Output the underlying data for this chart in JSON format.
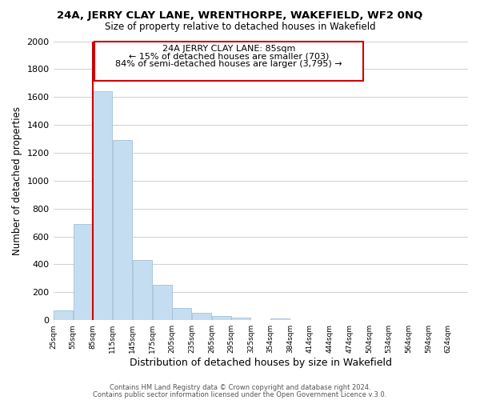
{
  "title": "24A, JERRY CLAY LANE, WRENTHORPE, WAKEFIELD, WF2 0NQ",
  "subtitle": "Size of property relative to detached houses in Wakefield",
  "xlabel": "Distribution of detached houses by size in Wakefield",
  "ylabel": "Number of detached properties",
  "bar_color": "#c5ddf0",
  "bar_edge_color": "#9ab8d0",
  "bar_left_edges": [
    25,
    55,
    85,
    115,
    145,
    175,
    205,
    235,
    265,
    295,
    325,
    354,
    384,
    414,
    444,
    474,
    504,
    534,
    564,
    594
  ],
  "bar_heights": [
    70,
    690,
    1640,
    1290,
    430,
    255,
    90,
    50,
    30,
    20,
    0,
    15,
    0,
    0,
    0,
    0,
    0,
    0,
    0,
    0
  ],
  "bar_widths": [
    30,
    30,
    30,
    30,
    30,
    30,
    30,
    30,
    30,
    30,
    29,
    30,
    30,
    30,
    30,
    30,
    30,
    30,
    30,
    30
  ],
  "property_size": 85,
  "red_line_color": "#cc0000",
  "annotation_text_line1": "24A JERRY CLAY LANE: 85sqm",
  "annotation_text_line2": "← 15% of detached houses are smaller (703)",
  "annotation_text_line3": "84% of semi-detached houses are larger (3,795) →",
  "annotation_box_color": "#cc0000",
  "xlim": [
    25,
    654
  ],
  "ylim": [
    0,
    2000
  ],
  "yticks": [
    0,
    200,
    400,
    600,
    800,
    1000,
    1200,
    1400,
    1600,
    1800,
    2000
  ],
  "xtick_labels": [
    "25sqm",
    "55sqm",
    "85sqm",
    "115sqm",
    "145sqm",
    "175sqm",
    "205sqm",
    "235sqm",
    "265sqm",
    "295sqm",
    "325sqm",
    "354sqm",
    "384sqm",
    "414sqm",
    "444sqm",
    "474sqm",
    "504sqm",
    "534sqm",
    "564sqm",
    "594sqm",
    "624sqm"
  ],
  "xtick_positions": [
    25,
    55,
    85,
    115,
    145,
    175,
    205,
    235,
    265,
    295,
    325,
    354,
    384,
    414,
    444,
    474,
    504,
    534,
    564,
    594,
    624
  ],
  "footer_line1": "Contains HM Land Registry data © Crown copyright and database right 2024.",
  "footer_line2": "Contains public sector information licensed under the Open Government Licence v.3.0.",
  "background_color": "#ffffff",
  "grid_color": "#d0d0d0"
}
